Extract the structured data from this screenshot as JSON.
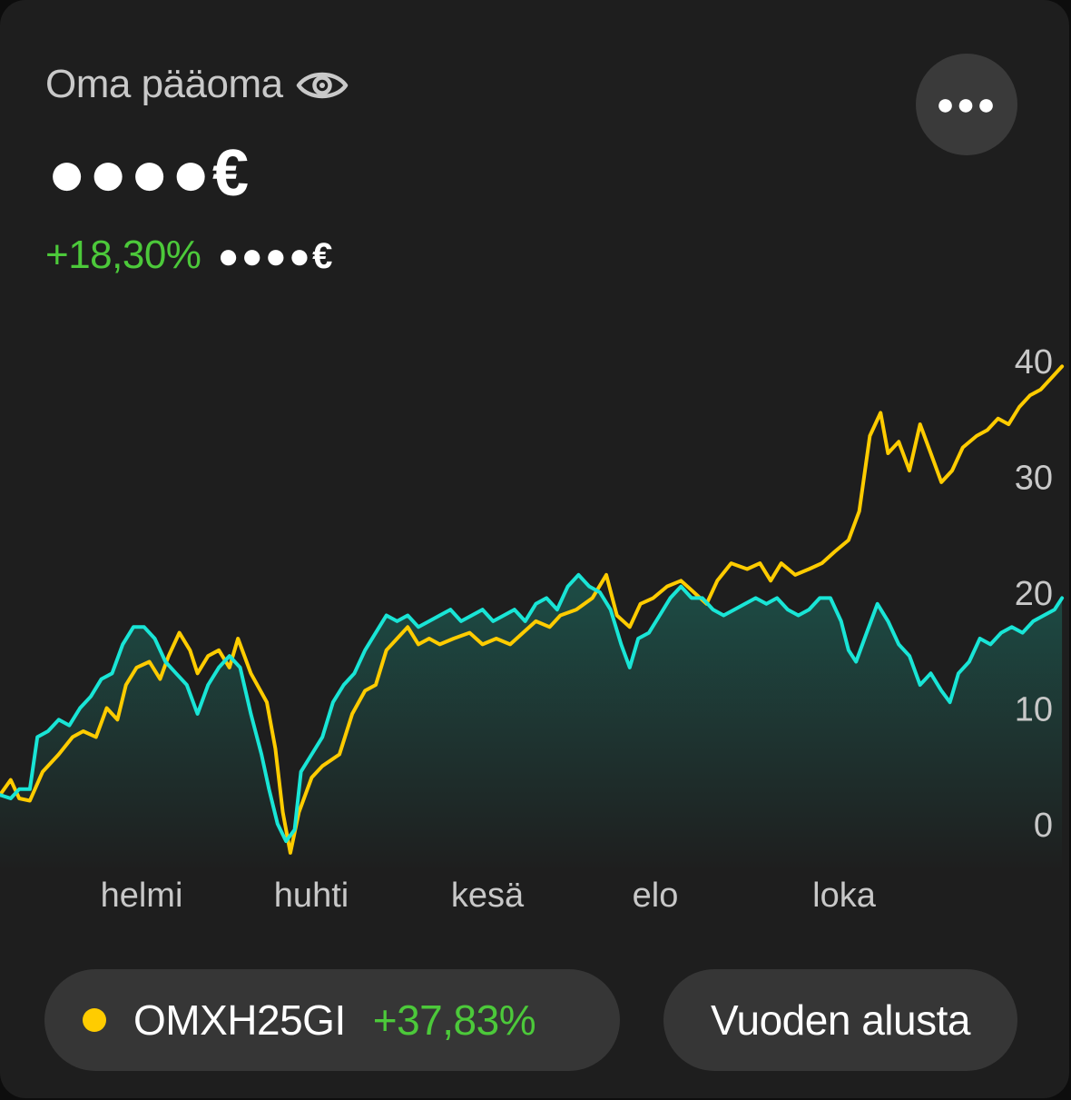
{
  "header": {
    "title": "Oma pääoma",
    "title_icon": "eye-icon",
    "masked_value": "●●●●€",
    "change_percent": "+18,30%",
    "masked_change": "●●●●€",
    "menu_icon": "more-horizontal-icon"
  },
  "colors": {
    "background": "#1e1e1e",
    "positive": "#4cc93a",
    "index_line": "#ffcc00",
    "portfolio_line": "#19e5d6",
    "portfolio_fill": "#1d4d46"
  },
  "chart_data": {
    "type": "line",
    "y_ticks": [
      0,
      10,
      20,
      30,
      40
    ],
    "ylim": [
      -4,
      41
    ],
    "x_ticks": [
      "helmi",
      "huhti",
      "kesä",
      "elo",
      "loka"
    ],
    "xlim": [
      0,
      1
    ],
    "grid": false,
    "series": [
      {
        "name": "OMXH25GI",
        "color": "#ffcc00",
        "points": [
          [
            0.0,
            2.5
          ],
          [
            0.01,
            3.8
          ],
          [
            0.018,
            2.2
          ],
          [
            0.028,
            2.0
          ],
          [
            0.04,
            4.5
          ],
          [
            0.055,
            6.0
          ],
          [
            0.068,
            7.5
          ],
          [
            0.078,
            8.0
          ],
          [
            0.09,
            7.5
          ],
          [
            0.1,
            10.0
          ],
          [
            0.11,
            9.0
          ],
          [
            0.118,
            12.0
          ],
          [
            0.128,
            13.5
          ],
          [
            0.14,
            14.0
          ],
          [
            0.15,
            12.5
          ],
          [
            0.158,
            14.5
          ],
          [
            0.168,
            16.5
          ],
          [
            0.178,
            15.0
          ],
          [
            0.185,
            13.0
          ],
          [
            0.195,
            14.5
          ],
          [
            0.205,
            15.0
          ],
          [
            0.215,
            13.5
          ],
          [
            0.223,
            16.0
          ],
          [
            0.235,
            13.0
          ],
          [
            0.25,
            10.5
          ],
          [
            0.258,
            6.5
          ],
          [
            0.265,
            1.0
          ],
          [
            0.272,
            -2.5
          ],
          [
            0.28,
            1.0
          ],
          [
            0.292,
            4.0
          ],
          [
            0.302,
            5.0
          ],
          [
            0.318,
            6.0
          ],
          [
            0.33,
            9.5
          ],
          [
            0.342,
            11.5
          ],
          [
            0.352,
            12.0
          ],
          [
            0.362,
            15.0
          ],
          [
            0.372,
            16.0
          ],
          [
            0.382,
            17.0
          ],
          [
            0.392,
            15.5
          ],
          [
            0.402,
            16.0
          ],
          [
            0.412,
            15.5
          ],
          [
            0.425,
            16.0
          ],
          [
            0.44,
            16.5
          ],
          [
            0.452,
            15.5
          ],
          [
            0.465,
            16.0
          ],
          [
            0.478,
            15.5
          ],
          [
            0.49,
            16.5
          ],
          [
            0.502,
            17.5
          ],
          [
            0.515,
            17.0
          ],
          [
            0.525,
            18.0
          ],
          [
            0.54,
            18.5
          ],
          [
            0.555,
            19.5
          ],
          [
            0.568,
            21.5
          ],
          [
            0.578,
            18.0
          ],
          [
            0.59,
            17.0
          ],
          [
            0.6,
            19.0
          ],
          [
            0.612,
            19.5
          ],
          [
            0.625,
            20.5
          ],
          [
            0.638,
            21.0
          ],
          [
            0.65,
            20.0
          ],
          [
            0.662,
            19.0
          ],
          [
            0.672,
            21.0
          ],
          [
            0.685,
            22.5
          ],
          [
            0.7,
            22.0
          ],
          [
            0.712,
            22.5
          ],
          [
            0.722,
            21.0
          ],
          [
            0.732,
            22.5
          ],
          [
            0.745,
            21.5
          ],
          [
            0.758,
            22.0
          ],
          [
            0.77,
            22.5
          ],
          [
            0.782,
            23.5
          ],
          [
            0.795,
            24.5
          ],
          [
            0.805,
            27.0
          ],
          [
            0.815,
            33.5
          ],
          [
            0.825,
            35.5
          ],
          [
            0.832,
            32.0
          ],
          [
            0.842,
            33.0
          ],
          [
            0.852,
            30.5
          ],
          [
            0.862,
            34.5
          ],
          [
            0.872,
            32.0
          ],
          [
            0.882,
            29.5
          ],
          [
            0.892,
            30.5
          ],
          [
            0.902,
            32.5
          ],
          [
            0.915,
            33.5
          ],
          [
            0.925,
            34.0
          ],
          [
            0.935,
            35.0
          ],
          [
            0.945,
            34.5
          ],
          [
            0.955,
            36.0
          ],
          [
            0.965,
            37.0
          ],
          [
            0.975,
            37.5
          ],
          [
            0.985,
            38.5
          ],
          [
            0.995,
            39.5
          ]
        ]
      },
      {
        "color": "#19e5d6",
        "points": [
          [
            0.0,
            2.5
          ],
          [
            0.01,
            2.2
          ],
          [
            0.018,
            3.0
          ],
          [
            0.028,
            3.0
          ],
          [
            0.035,
            7.5
          ],
          [
            0.045,
            8.0
          ],
          [
            0.055,
            9.0
          ],
          [
            0.065,
            8.5
          ],
          [
            0.075,
            10.0
          ],
          [
            0.085,
            11.0
          ],
          [
            0.095,
            12.5
          ],
          [
            0.105,
            13.0
          ],
          [
            0.115,
            15.5
          ],
          [
            0.125,
            17.0
          ],
          [
            0.135,
            17.0
          ],
          [
            0.145,
            16.0
          ],
          [
            0.155,
            14.0
          ],
          [
            0.165,
            13.0
          ],
          [
            0.175,
            12.0
          ],
          [
            0.185,
            9.5
          ],
          [
            0.195,
            12.0
          ],
          [
            0.205,
            13.5
          ],
          [
            0.215,
            14.5
          ],
          [
            0.225,
            13.5
          ],
          [
            0.235,
            9.5
          ],
          [
            0.245,
            6.0
          ],
          [
            0.252,
            3.0
          ],
          [
            0.26,
            0.0
          ],
          [
            0.268,
            -1.5
          ],
          [
            0.276,
            -0.5
          ],
          [
            0.282,
            4.5
          ],
          [
            0.292,
            6.0
          ],
          [
            0.302,
            7.5
          ],
          [
            0.312,
            10.5
          ],
          [
            0.322,
            12.0
          ],
          [
            0.332,
            13.0
          ],
          [
            0.342,
            15.0
          ],
          [
            0.352,
            16.5
          ],
          [
            0.362,
            18.0
          ],
          [
            0.372,
            17.5
          ],
          [
            0.382,
            18.0
          ],
          [
            0.392,
            17.0
          ],
          [
            0.402,
            17.5
          ],
          [
            0.412,
            18.0
          ],
          [
            0.422,
            18.5
          ],
          [
            0.432,
            17.5
          ],
          [
            0.442,
            18.0
          ],
          [
            0.452,
            18.5
          ],
          [
            0.462,
            17.5
          ],
          [
            0.472,
            18.0
          ],
          [
            0.482,
            18.5
          ],
          [
            0.492,
            17.5
          ],
          [
            0.502,
            19.0
          ],
          [
            0.512,
            19.5
          ],
          [
            0.522,
            18.5
          ],
          [
            0.532,
            20.5
          ],
          [
            0.542,
            21.5
          ],
          [
            0.552,
            20.5
          ],
          [
            0.562,
            20.0
          ],
          [
            0.572,
            18.5
          ],
          [
            0.582,
            15.5
          ],
          [
            0.59,
            13.5
          ],
          [
            0.598,
            16.0
          ],
          [
            0.608,
            16.5
          ],
          [
            0.618,
            18.0
          ],
          [
            0.628,
            19.5
          ],
          [
            0.638,
            20.5
          ],
          [
            0.648,
            19.5
          ],
          [
            0.658,
            19.5
          ],
          [
            0.668,
            18.5
          ],
          [
            0.678,
            18.0
          ],
          [
            0.688,
            18.5
          ],
          [
            0.698,
            19.0
          ],
          [
            0.708,
            19.5
          ],
          [
            0.718,
            19.0
          ],
          [
            0.728,
            19.5
          ],
          [
            0.738,
            18.5
          ],
          [
            0.748,
            18.0
          ],
          [
            0.758,
            18.5
          ],
          [
            0.768,
            19.5
          ],
          [
            0.778,
            19.5
          ],
          [
            0.788,
            17.5
          ],
          [
            0.795,
            15.0
          ],
          [
            0.802,
            14.0
          ],
          [
            0.812,
            16.5
          ],
          [
            0.822,
            19.0
          ],
          [
            0.832,
            17.5
          ],
          [
            0.842,
            15.5
          ],
          [
            0.852,
            14.5
          ],
          [
            0.862,
            12.0
          ],
          [
            0.872,
            13.0
          ],
          [
            0.882,
            11.5
          ],
          [
            0.89,
            10.5
          ],
          [
            0.898,
            13.0
          ],
          [
            0.908,
            14.0
          ],
          [
            0.918,
            16.0
          ],
          [
            0.928,
            15.5
          ],
          [
            0.938,
            16.5
          ],
          [
            0.948,
            17.0
          ],
          [
            0.958,
            16.5
          ],
          [
            0.968,
            17.5
          ],
          [
            0.978,
            18.0
          ],
          [
            0.988,
            18.5
          ],
          [
            0.995,
            19.5
          ]
        ]
      }
    ]
  },
  "footer": {
    "index_name": "OMXH25GI",
    "index_change": "+37,83%",
    "period_label": "Vuoden alusta"
  }
}
